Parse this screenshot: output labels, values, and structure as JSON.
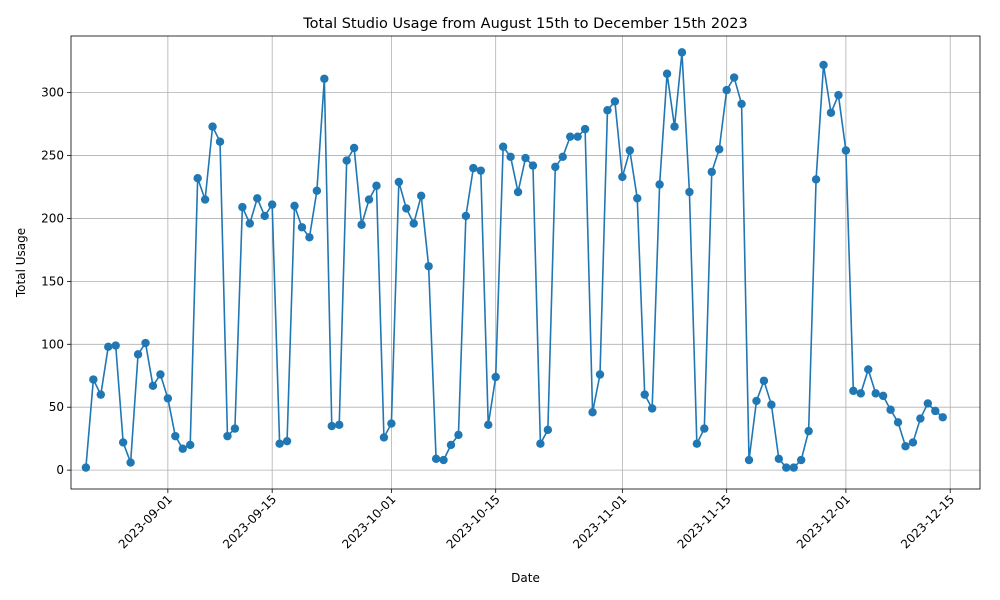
{
  "chart_data": {
    "type": "line",
    "title": "Total Studio Usage from August 15th to December 15th 2023",
    "xlabel": "Date",
    "ylabel": "Total Usage",
    "xlim": [
      "2023-08-19",
      "2023-12-19"
    ],
    "ylim": [
      -15,
      345
    ],
    "grid": true,
    "x_ticks": [
      "2023-09-01",
      "2023-09-15",
      "2023-10-01",
      "2023-10-15",
      "2023-11-01",
      "2023-11-15",
      "2023-12-01",
      "2023-12-15"
    ],
    "y_ticks": [
      0,
      50,
      100,
      150,
      200,
      250,
      300
    ],
    "series": [
      {
        "color": "#1f77b4",
        "x": [
          "2023-08-21",
          "2023-08-22",
          "2023-08-23",
          "2023-08-24",
          "2023-08-25",
          "2023-08-26",
          "2023-08-27",
          "2023-08-28",
          "2023-08-29",
          "2023-08-30",
          "2023-08-31",
          "2023-09-01",
          "2023-09-02",
          "2023-09-03",
          "2023-09-04",
          "2023-09-05",
          "2023-09-06",
          "2023-09-07",
          "2023-09-08",
          "2023-09-09",
          "2023-09-10",
          "2023-09-11",
          "2023-09-12",
          "2023-09-13",
          "2023-09-14",
          "2023-09-15",
          "2023-09-16",
          "2023-09-17",
          "2023-09-18",
          "2023-09-19",
          "2023-09-20",
          "2023-09-21",
          "2023-09-22",
          "2023-09-23",
          "2023-09-24",
          "2023-09-25",
          "2023-09-26",
          "2023-09-27",
          "2023-09-28",
          "2023-09-29",
          "2023-09-30",
          "2023-10-01",
          "2023-10-02",
          "2023-10-03",
          "2023-10-04",
          "2023-10-05",
          "2023-10-06",
          "2023-10-07",
          "2023-10-08",
          "2023-10-09",
          "2023-10-10",
          "2023-10-11",
          "2023-10-12",
          "2023-10-13",
          "2023-10-14",
          "2023-10-15",
          "2023-10-16",
          "2023-10-17",
          "2023-10-18",
          "2023-10-19",
          "2023-10-20",
          "2023-10-21",
          "2023-10-22",
          "2023-10-23",
          "2023-10-24",
          "2023-10-25",
          "2023-10-26",
          "2023-10-27",
          "2023-10-28",
          "2023-10-29",
          "2023-10-30",
          "2023-10-31",
          "2023-11-01",
          "2023-11-02",
          "2023-11-03",
          "2023-11-04",
          "2023-11-05",
          "2023-11-06",
          "2023-11-07",
          "2023-11-08",
          "2023-11-09",
          "2023-11-10",
          "2023-11-11",
          "2023-11-12",
          "2023-11-13",
          "2023-11-14",
          "2023-11-15",
          "2023-11-16",
          "2023-11-17",
          "2023-11-18",
          "2023-11-19",
          "2023-11-20",
          "2023-11-21",
          "2023-11-22",
          "2023-11-23",
          "2023-11-24",
          "2023-11-25",
          "2023-11-26",
          "2023-11-27",
          "2023-11-28",
          "2023-11-29",
          "2023-11-30",
          "2023-12-01",
          "2023-12-02",
          "2023-12-03",
          "2023-12-04",
          "2023-12-05",
          "2023-12-06",
          "2023-12-07",
          "2023-12-08",
          "2023-12-09",
          "2023-12-10",
          "2023-12-11",
          "2023-12-12",
          "2023-12-13",
          "2023-12-14"
        ],
        "values": [
          2,
          72,
          60,
          98,
          99,
          22,
          6,
          92,
          101,
          67,
          76,
          57,
          27,
          17,
          20,
          232,
          215,
          273,
          261,
          27,
          33,
          209,
          196,
          216,
          202,
          211,
          21,
          23,
          210,
          193,
          185,
          222,
          311,
          35,
          36,
          246,
          256,
          195,
          215,
          226,
          26,
          37,
          229,
          208,
          196,
          218,
          162,
          9,
          8,
          20,
          28,
          202,
          240,
          238,
          36,
          74,
          257,
          249,
          221,
          248,
          242,
          21,
          32,
          241,
          249,
          265,
          265,
          271,
          46,
          76,
          286,
          293,
          233,
          254,
          216,
          60,
          49,
          227,
          315,
          273,
          332,
          221,
          21,
          33,
          237,
          255,
          302,
          312,
          291,
          8,
          55,
          71,
          52,
          9,
          2,
          2,
          8,
          31,
          231,
          322,
          284,
          298,
          254,
          63,
          61,
          80,
          61,
          59,
          48,
          38,
          19,
          22,
          41,
          53,
          47,
          42
        ]
      }
    ]
  }
}
